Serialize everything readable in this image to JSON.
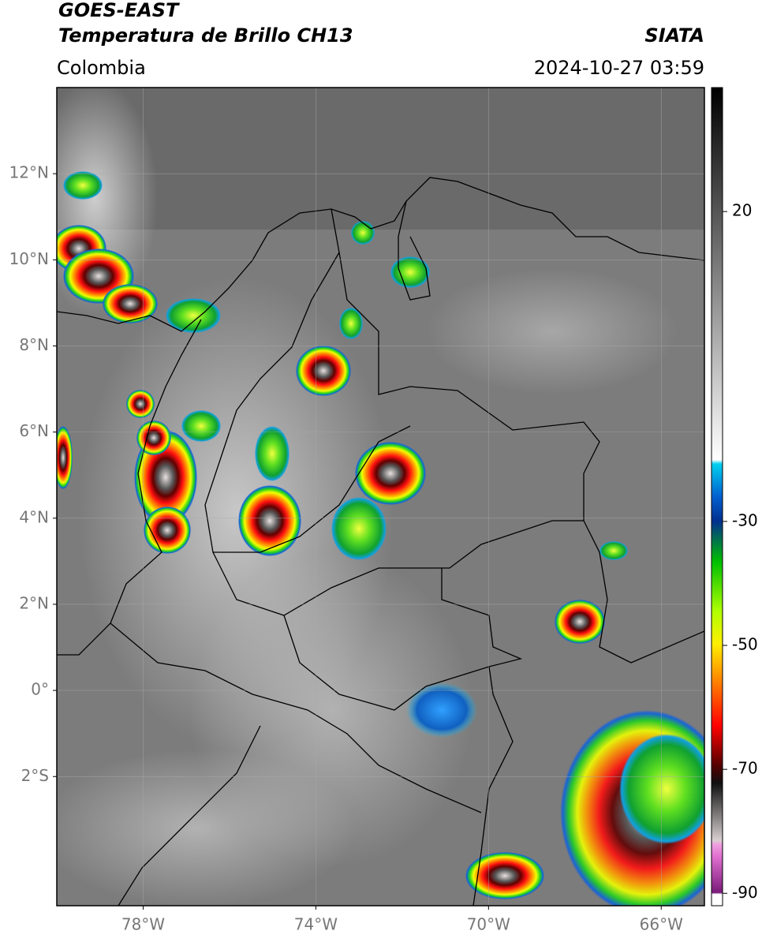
{
  "header": {
    "title": "GOES-EAST",
    "subtitle": "Temperatura de Brillo CH13",
    "source": "SIATA",
    "region": "Colombia",
    "timestamp": "2024-10-27 03:59"
  },
  "map": {
    "lon_range": [
      -80,
      -65
    ],
    "lat_range": [
      -5,
      14
    ],
    "lon_ticks": [
      {
        "value": -78,
        "label": "78°W"
      },
      {
        "value": -74,
        "label": "74°W"
      },
      {
        "value": -70,
        "label": "70°W"
      },
      {
        "value": -66,
        "label": "66°W"
      }
    ],
    "lat_ticks": [
      {
        "value": 12,
        "label": "12°N"
      },
      {
        "value": 10,
        "label": "10°N"
      },
      {
        "value": 8,
        "label": "8°N"
      },
      {
        "value": 6,
        "label": "6°N"
      },
      {
        "value": 4,
        "label": "4°N"
      },
      {
        "value": 2,
        "label": "2°N"
      },
      {
        "value": 0,
        "label": "0°"
      },
      {
        "value": -2,
        "label": "2°S"
      }
    ]
  },
  "colorbar": {
    "range": [
      -92,
      40
    ],
    "ticks": [
      20,
      -30,
      -50,
      -70,
      -90
    ]
  }
}
